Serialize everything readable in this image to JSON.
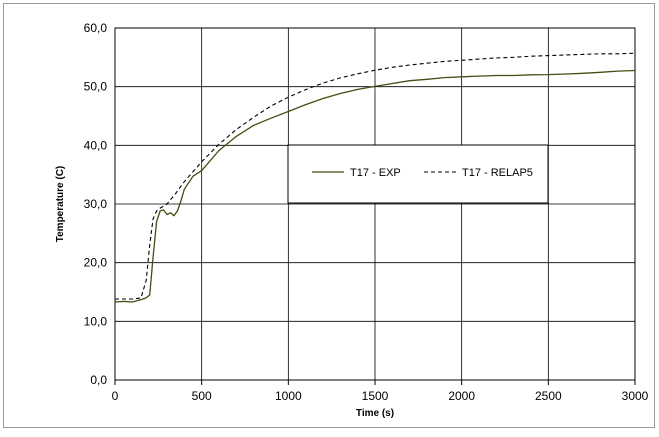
{
  "chart_data": {
    "type": "line",
    "xlabel": "Time (s)",
    "ylabel": "Temperature (C)",
    "xlim": [
      0,
      3000
    ],
    "ylim": [
      0,
      60
    ],
    "x_ticks": [
      0,
      500,
      1000,
      1500,
      2000,
      2500,
      3000
    ],
    "y_ticks": [
      "0,0",
      "10,0",
      "20,0",
      "30,0",
      "40,0",
      "50,0",
      "60,0"
    ],
    "y_tick_values": [
      0,
      10,
      20,
      30,
      40,
      50,
      60
    ],
    "grid": {
      "horizontal": true,
      "vertical": true
    },
    "legend_position": "center-right",
    "series": [
      {
        "name": "T17 - EXP",
        "style": "solid",
        "color": "#4a4a14",
        "x": [
          0,
          50,
          100,
          150,
          180,
          200,
          220,
          240,
          260,
          280,
          300,
          320,
          340,
          360,
          380,
          400,
          450,
          500,
          600,
          700,
          800,
          900,
          1000,
          1100,
          1200,
          1300,
          1400,
          1500,
          1600,
          1700,
          1800,
          1900,
          2000,
          2100,
          2200,
          2300,
          2400,
          2500,
          2600,
          2700,
          2800,
          2900,
          3000
        ],
        "y": [
          13.3,
          13.4,
          13.3,
          13.7,
          14.0,
          14.5,
          21.0,
          27.0,
          28.8,
          29.0,
          28.2,
          28.5,
          28.0,
          28.8,
          30.5,
          32.5,
          34.5,
          35.5,
          39.0,
          41.5,
          43.5,
          44.8,
          46.0,
          47.2,
          48.2,
          49.0,
          49.6,
          50.0,
          50.4,
          50.8,
          51.0,
          51.3,
          51.5,
          51.7,
          51.9,
          52.0,
          52.2,
          52.3,
          52.4,
          52.5,
          52.6,
          52.7,
          52.7
        ]
      },
      {
        "name": "T17 - RELAP5",
        "style": "dashed",
        "color": "#000000",
        "x": [
          0,
          50,
          100,
          150,
          180,
          200,
          220,
          240,
          260,
          280,
          300,
          350,
          400,
          450,
          500,
          600,
          700,
          800,
          900,
          1000,
          1100,
          1200,
          1300,
          1400,
          1500,
          1600,
          1700,
          1800,
          1900,
          2000,
          2100,
          2200,
          2300,
          2400,
          2500,
          2600,
          2700,
          2800,
          2900,
          3000
        ],
        "y": [
          13.8,
          13.8,
          13.8,
          14.0,
          17.0,
          23.0,
          27.5,
          28.8,
          29.3,
          29.6,
          30.0,
          31.8,
          33.8,
          35.5,
          37.2,
          40.2,
          42.7,
          44.8,
          46.7,
          48.2,
          49.5,
          50.6,
          51.5,
          52.2,
          52.8,
          53.3,
          53.7,
          54.0,
          54.3,
          54.5,
          54.7,
          54.9,
          55.0,
          55.2,
          55.3,
          55.4,
          55.5,
          55.6,
          55.6,
          55.7
        ]
      }
    ]
  }
}
